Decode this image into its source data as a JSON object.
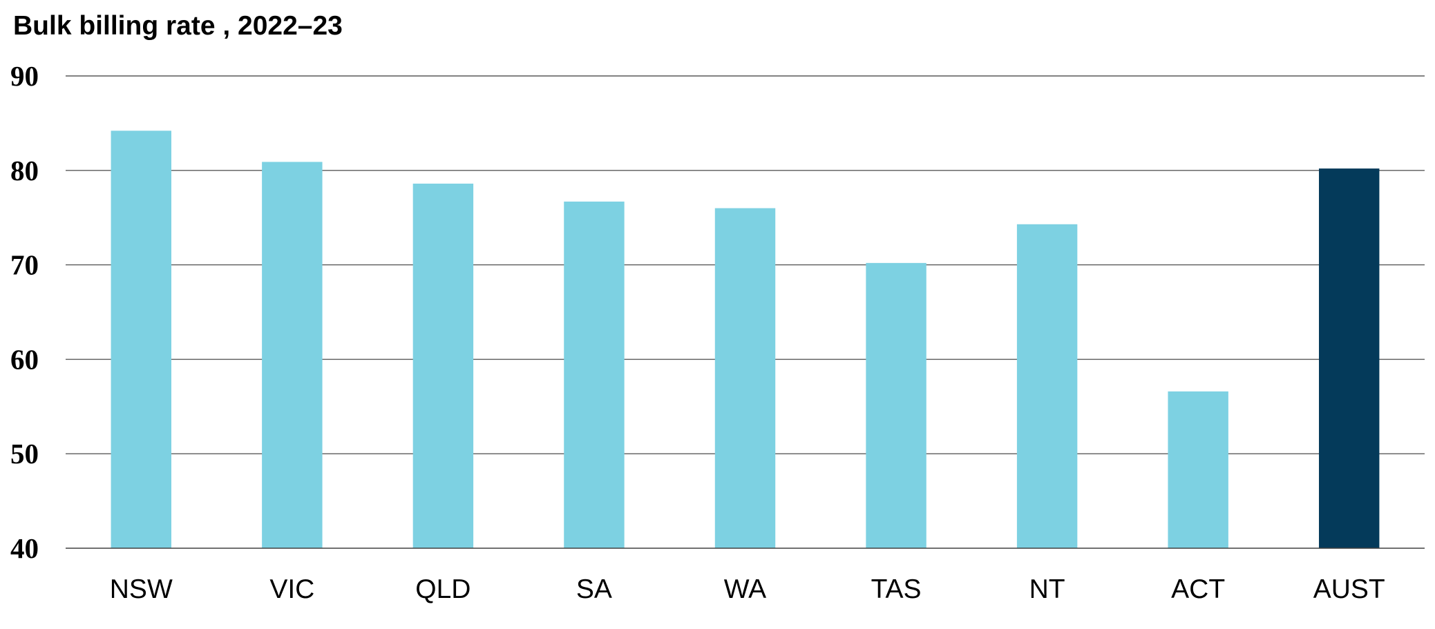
{
  "chart_data": {
    "type": "bar",
    "title": "Bulk billing rate , 2022–23",
    "xlabel": "",
    "ylabel": "",
    "categories": [
      "NSW",
      "VIC",
      "QLD",
      "SA",
      "WA",
      "TAS",
      "NT",
      "ACT",
      "AUST"
    ],
    "values": [
      84.2,
      80.9,
      78.6,
      76.7,
      76.0,
      70.2,
      74.3,
      56.6,
      80.2
    ],
    "highlight_category": "AUST",
    "ylim": [
      40,
      90
    ],
    "yticks": [
      "40",
      "50",
      "60",
      "70",
      "80",
      "90"
    ],
    "grid": true,
    "legend": "none",
    "colors": {
      "bar": "#7dd1e2",
      "highlight": "#043a5a",
      "gridline": "#595959",
      "axis": "#404040"
    }
  }
}
